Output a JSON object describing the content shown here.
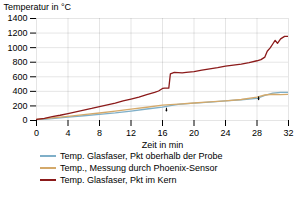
{
  "chart_data": {
    "type": "line",
    "xlabel": "Zeit in min",
    "ylabel": "Temperatur in °C",
    "xlim": [
      0,
      32
    ],
    "ylim": [
      0,
      1400
    ],
    "xticks": [
      0,
      4,
      8,
      12,
      16,
      20,
      24,
      28,
      32
    ],
    "yticks": [
      0,
      200,
      400,
      600,
      800,
      1000,
      1200,
      1400
    ],
    "grid": true,
    "legend": "bottom",
    "series": [
      {
        "name": "Temp. Glasfaser, Pkt oberhalb der Probe",
        "color": "#7fafc8",
        "line_style": "solid",
        "x": [
          0,
          2,
          4,
          6,
          8,
          10,
          12,
          14,
          16,
          17,
          18,
          20,
          22,
          24,
          26,
          28,
          29,
          30,
          31,
          32
        ],
        "values": [
          10,
          25,
          45,
          65,
          85,
          105,
          130,
          158,
          185,
          205,
          220,
          238,
          252,
          268,
          285,
          305,
          345,
          375,
          385,
          385
        ]
      },
      {
        "name": "Temp., Messung durch Phoenix-Sensor",
        "color": "#d4a96a",
        "line_style": "solid",
        "x": [
          0,
          2,
          4,
          6,
          8,
          10,
          12,
          14,
          16,
          17,
          18,
          20,
          22,
          24,
          26,
          28,
          29,
          30,
          31,
          32
        ],
        "values": [
          15,
          35,
          58,
          80,
          103,
          128,
          155,
          182,
          210,
          218,
          225,
          240,
          255,
          270,
          288,
          320,
          350,
          360,
          355,
          360
        ]
      },
      {
        "name": "Temp. Glasfaser, Pkt im Kern",
        "color": "#8b1a1a",
        "line_style": "solid",
        "x": [
          0,
          1,
          2,
          3,
          4,
          5,
          6,
          7,
          8,
          9,
          10,
          11,
          12,
          13,
          14,
          15,
          15.5,
          16,
          16.3,
          16.8,
          17,
          17.5,
          18,
          18.5,
          19,
          20,
          21,
          22,
          23,
          24,
          25,
          26,
          27,
          28,
          28.5,
          29,
          29.3,
          29.7,
          30,
          30.3,
          30.6,
          31,
          31.5,
          32
        ],
        "values": [
          15,
          30,
          52,
          72,
          95,
          118,
          143,
          165,
          190,
          215,
          240,
          268,
          295,
          322,
          355,
          385,
          405,
          440,
          445,
          445,
          640,
          660,
          658,
          655,
          660,
          670,
          690,
          710,
          725,
          745,
          760,
          775,
          795,
          820,
          835,
          870,
          950,
          1000,
          1050,
          1100,
          1060,
          1120,
          1155,
          1155
        ]
      }
    ],
    "arrows": [
      {
        "x": 16.5,
        "y1": 170,
        "y2": 130
      },
      {
        "x": 28.2,
        "y1": 325,
        "y2": 285
      }
    ]
  }
}
